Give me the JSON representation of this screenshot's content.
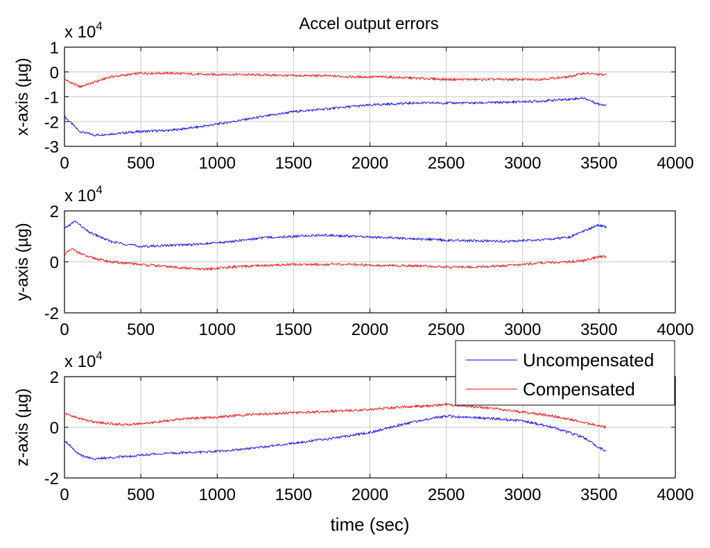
{
  "chart_data": [
    {
      "type": "line",
      "title": "Accel output errors",
      "ylabel": "x-axis (µg)",
      "multiplier": "x 10",
      "exponent": "4",
      "xlim": [
        0,
        4000
      ],
      "ylim": [
        -3,
        1
      ],
      "xticks": [
        "0",
        "500",
        "1000",
        "1500",
        "2000",
        "2500",
        "3000",
        "3500",
        "4000"
      ],
      "yticks": [
        "-3",
        "-2",
        "-1",
        "0",
        "1"
      ],
      "grid": true,
      "series": [
        {
          "name": "Uncompensated",
          "color": "#0000ff",
          "x": [
            0,
            100,
            200,
            300,
            500,
            700,
            900,
            1100,
            1300,
            1500,
            1700,
            1900,
            2100,
            2300,
            2500,
            2700,
            2900,
            3100,
            3300,
            3400,
            3500,
            3550
          ],
          "y": [
            -1.8,
            -2.4,
            -2.55,
            -2.5,
            -2.4,
            -2.35,
            -2.2,
            -2.0,
            -1.8,
            -1.6,
            -1.5,
            -1.38,
            -1.3,
            -1.25,
            -1.25,
            -1.25,
            -1.22,
            -1.18,
            -1.1,
            -1.05,
            -1.3,
            -1.32
          ]
        },
        {
          "name": "Compensated",
          "color": "#ff0000",
          "x": [
            0,
            100,
            200,
            300,
            500,
            700,
            900,
            1100,
            1300,
            1500,
            1700,
            1900,
            2100,
            2300,
            2500,
            2700,
            2900,
            3100,
            3300,
            3400,
            3500,
            3550
          ],
          "y": [
            -0.3,
            -0.6,
            -0.4,
            -0.2,
            -0.05,
            -0.05,
            -0.1,
            -0.1,
            -0.12,
            -0.15,
            -0.15,
            -0.2,
            -0.2,
            -0.25,
            -0.3,
            -0.3,
            -0.3,
            -0.3,
            -0.2,
            -0.05,
            -0.1,
            -0.12
          ]
        }
      ]
    },
    {
      "type": "line",
      "ylabel": "y-axis (µg)",
      "multiplier": "x 10",
      "exponent": "4",
      "xlim": [
        0,
        4000
      ],
      "ylim": [
        -2,
        2
      ],
      "xticks": [
        "0",
        "500",
        "1000",
        "1500",
        "2000",
        "2500",
        "3000",
        "3500",
        "4000"
      ],
      "yticks": [
        "-2",
        "0",
        "2"
      ],
      "grid": true,
      "series": [
        {
          "name": "Uncompensated",
          "color": "#0000ff",
          "x": [
            0,
            70,
            150,
            300,
            500,
            700,
            900,
            1100,
            1300,
            1500,
            1700,
            1900,
            2100,
            2300,
            2500,
            2700,
            2900,
            3100,
            3300,
            3400,
            3500,
            3550
          ],
          "y": [
            1.3,
            1.6,
            1.2,
            0.8,
            0.6,
            0.65,
            0.7,
            0.8,
            0.95,
            1.0,
            1.05,
            1.0,
            0.95,
            0.9,
            0.85,
            0.82,
            0.8,
            0.85,
            0.95,
            1.2,
            1.45,
            1.35
          ]
        },
        {
          "name": "Compensated",
          "color": "#ff0000",
          "x": [
            0,
            50,
            150,
            300,
            500,
            700,
            900,
            1100,
            1300,
            1500,
            1700,
            1900,
            2100,
            2300,
            2500,
            2700,
            2900,
            3100,
            3300,
            3400,
            3500,
            3550
          ],
          "y": [
            0.3,
            0.5,
            0.2,
            0.0,
            -0.1,
            -0.2,
            -0.3,
            -0.2,
            -0.15,
            -0.1,
            -0.1,
            -0.1,
            -0.15,
            -0.15,
            -0.2,
            -0.2,
            -0.15,
            -0.05,
            0.0,
            0.05,
            0.2,
            0.2
          ]
        }
      ]
    },
    {
      "type": "line",
      "ylabel": "z-axis (µg)",
      "xlabel": "time (sec)",
      "multiplier": "x 10",
      "exponent": "4",
      "xlim": [
        0,
        4000
      ],
      "ylim": [
        -2,
        2
      ],
      "xticks": [
        "0",
        "500",
        "1000",
        "1500",
        "2000",
        "2500",
        "3000",
        "3500",
        "4000"
      ],
      "yticks": [
        "-2",
        "0",
        "2"
      ],
      "grid": true,
      "legend": {
        "position": "top-right",
        "entries": [
          "Uncompensated",
          "Compensated"
        ]
      },
      "series": [
        {
          "name": "Uncompensated",
          "color": "#0000ff",
          "x": [
            0,
            100,
            200,
            400,
            600,
            800,
            1000,
            1200,
            1400,
            1600,
            1800,
            2000,
            2200,
            2400,
            2500,
            2600,
            2800,
            3000,
            3200,
            3400,
            3500,
            3550
          ],
          "y": [
            -0.5,
            -1.1,
            -1.25,
            -1.15,
            -1.05,
            -1.0,
            -0.95,
            -0.85,
            -0.7,
            -0.55,
            -0.4,
            -0.2,
            0.1,
            0.35,
            0.45,
            0.4,
            0.35,
            0.25,
            0.0,
            -0.4,
            -0.8,
            -0.95
          ]
        },
        {
          "name": "Compensated",
          "color": "#ff0000",
          "x": [
            0,
            100,
            200,
            400,
            600,
            800,
            1000,
            1200,
            1400,
            1600,
            1800,
            2000,
            2200,
            2400,
            2500,
            2600,
            2800,
            3000,
            3200,
            3400,
            3500,
            3550
          ],
          "y": [
            0.55,
            0.35,
            0.2,
            0.1,
            0.2,
            0.35,
            0.4,
            0.5,
            0.55,
            0.6,
            0.65,
            0.7,
            0.8,
            0.85,
            0.9,
            0.85,
            0.75,
            0.6,
            0.45,
            0.2,
            0.05,
            0.0
          ]
        }
      ]
    }
  ]
}
